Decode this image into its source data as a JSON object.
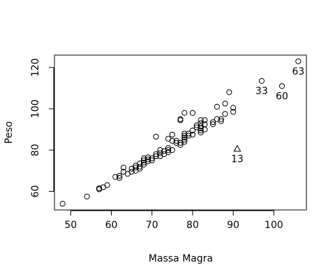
{
  "chart_data": {
    "type": "scatter",
    "xlabel": "Massa Magra",
    "ylabel": "Peso",
    "xlim": [
      46,
      108
    ],
    "ylim": [
      51,
      126
    ],
    "xticks": [
      50,
      60,
      70,
      80,
      90,
      100
    ],
    "yticks": [
      60,
      80,
      100,
      120
    ],
    "grid": false,
    "series": [
      {
        "marker": "circle",
        "points": [
          [
            48,
            54
          ],
          [
            54,
            57.5
          ],
          [
            57,
            61
          ],
          [
            57,
            61.5
          ],
          [
            58,
            62
          ],
          [
            59,
            63
          ],
          [
            61,
            67
          ],
          [
            62,
            66.5
          ],
          [
            62,
            67.5
          ],
          [
            63,
            69.5
          ],
          [
            63,
            71.5
          ],
          [
            64,
            68.5
          ],
          [
            65,
            69.5
          ],
          [
            65,
            71
          ],
          [
            66,
            70
          ],
          [
            66,
            71.5
          ],
          [
            66,
            72.5
          ],
          [
            67,
            71
          ],
          [
            67,
            72
          ],
          [
            67,
            73.5
          ],
          [
            68,
            73
          ],
          [
            68,
            74
          ],
          [
            68,
            75
          ],
          [
            68,
            76
          ],
          [
            69,
            74.5
          ],
          [
            69,
            75.5
          ],
          [
            69,
            76.5
          ],
          [
            70,
            75
          ],
          [
            70,
            76
          ],
          [
            71,
            77
          ],
          [
            71,
            78
          ],
          [
            71,
            86.5
          ],
          [
            72,
            77
          ],
          [
            72,
            78.5
          ],
          [
            72,
            80
          ],
          [
            73,
            78
          ],
          [
            73,
            79.5
          ],
          [
            74,
            79
          ],
          [
            74,
            80
          ],
          [
            74,
            81
          ],
          [
            74,
            85.5
          ],
          [
            75,
            80
          ],
          [
            75,
            84.5
          ],
          [
            75,
            87.5
          ],
          [
            76,
            83.5
          ],
          [
            76,
            84.5
          ],
          [
            77,
            82.5
          ],
          [
            77,
            83.5
          ],
          [
            77,
            94.5
          ],
          [
            77,
            95
          ],
          [
            78,
            84
          ],
          [
            78,
            85
          ],
          [
            78,
            86
          ],
          [
            78,
            87
          ],
          [
            78,
            88
          ],
          [
            78,
            98
          ],
          [
            79,
            87
          ],
          [
            79,
            88
          ],
          [
            80,
            87.5
          ],
          [
            80,
            89.5
          ],
          [
            80,
            98
          ],
          [
            81,
            91
          ],
          [
            81,
            92
          ],
          [
            82,
            88.5
          ],
          [
            82,
            89.5
          ],
          [
            82,
            90.5
          ],
          [
            82,
            91.5
          ],
          [
            82,
            93
          ],
          [
            82,
            94.5
          ],
          [
            83,
            90
          ],
          [
            83,
            92.5
          ],
          [
            83,
            94.5
          ],
          [
            85,
            92.5
          ],
          [
            85,
            93.5
          ],
          [
            86,
            95
          ],
          [
            86,
            101
          ],
          [
            87,
            94
          ],
          [
            87,
            95
          ],
          [
            88,
            97.5
          ],
          [
            88,
            102.5
          ],
          [
            89,
            108
          ],
          [
            90,
            98.5
          ],
          [
            90,
            100.5
          ]
        ]
      },
      {
        "marker": "circle",
        "labeled_points": [
          {
            "x": 97,
            "y": 113.5,
            "label": "33"
          },
          {
            "x": 102,
            "y": 111,
            "label": "60"
          },
          {
            "x": 106,
            "y": 123,
            "label": "63"
          }
        ]
      },
      {
        "marker": "triangle",
        "labeled_points": [
          {
            "x": 91,
            "y": 80.5,
            "label": "13"
          }
        ]
      }
    ]
  }
}
